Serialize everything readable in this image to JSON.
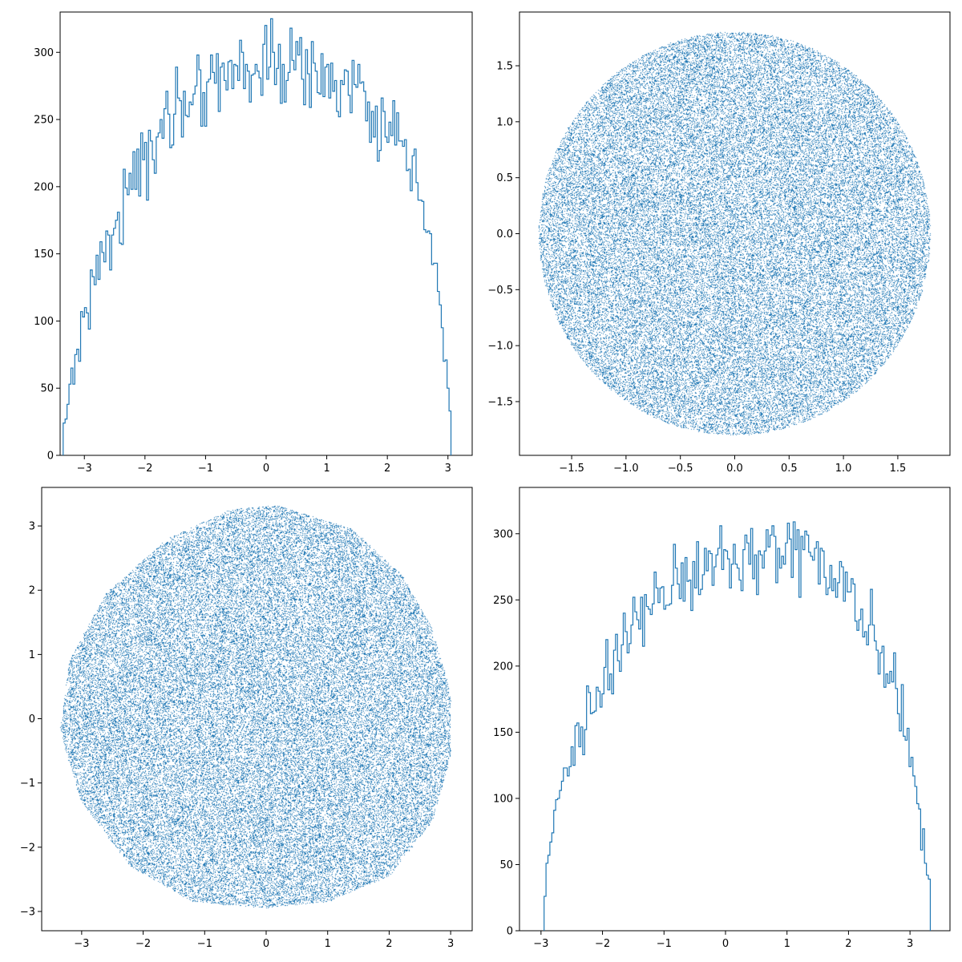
{
  "colors": {
    "series": "#1f77b4",
    "axes": "#000000",
    "background": "#ffffff"
  },
  "chart_data": [
    {
      "position": "top-left",
      "type": "histogram",
      "histtype": "step",
      "title": "",
      "xlabel": "",
      "ylabel": "",
      "xlim": [
        -3.4,
        3.4
      ],
      "ylim": [
        0,
        330
      ],
      "xticks": [
        -3,
        -2,
        -1,
        0,
        1,
        2,
        3
      ],
      "yticks": [
        0,
        50,
        100,
        150,
        200,
        250,
        300
      ],
      "bin_range": [
        -3.35,
        3.05
      ],
      "bin_count": 200,
      "keypoint_counts": [
        [
          -3.33,
          18
        ],
        [
          -3.25,
          50
        ],
        [
          -3.1,
          82
        ],
        [
          -3.0,
          100
        ],
        [
          -2.85,
          132
        ],
        [
          -2.7,
          150
        ],
        [
          -2.5,
          170
        ],
        [
          -2.3,
          195
        ],
        [
          -2.1,
          212
        ],
        [
          -1.9,
          225
        ],
        [
          -1.7,
          245
        ],
        [
          -1.5,
          258
        ],
        [
          -1.3,
          268
        ],
        [
          -1.1,
          276
        ],
        [
          -0.9,
          282
        ],
        [
          -0.7,
          285
        ],
        [
          -0.5,
          288
        ],
        [
          -0.3,
          289
        ],
        [
          -0.1,
          290
        ],
        [
          0.1,
          290
        ],
        [
          0.3,
          289
        ],
        [
          0.5,
          288
        ],
        [
          0.7,
          286
        ],
        [
          0.9,
          283
        ],
        [
          1.1,
          279
        ],
        [
          1.3,
          274
        ],
        [
          1.5,
          266
        ],
        [
          1.7,
          258
        ],
        [
          1.9,
          248
        ],
        [
          2.1,
          235
        ],
        [
          2.3,
          218
        ],
        [
          2.5,
          195
        ],
        [
          2.65,
          170
        ],
        [
          2.8,
          135
        ],
        [
          2.9,
          95
        ],
        [
          3.0,
          55
        ],
        [
          3.05,
          30
        ]
      ]
    },
    {
      "position": "top-right",
      "type": "scatter",
      "shape": "disk",
      "point_count": 60000,
      "center": [
        0,
        0
      ],
      "radius": 1.8,
      "title": "",
      "xlabel": "",
      "ylabel": "",
      "xlim": [
        -1.98,
        1.98
      ],
      "ylim": [
        -1.98,
        1.98
      ],
      "xticks": [
        "-1.5",
        "-1.0",
        "-0.5",
        "0.0",
        "0.5",
        "1.0",
        "1.5"
      ],
      "yticks": [
        "-1.5",
        "-1.0",
        "-0.5",
        "0.0",
        "0.5",
        "1.0",
        "1.5"
      ]
    },
    {
      "position": "bottom-left",
      "type": "scatter",
      "shape": "rounded blob",
      "point_count": 60000,
      "title": "",
      "xlabel": "",
      "ylabel": "",
      "xlim": [
        -3.65,
        3.35
      ],
      "ylim": [
        -3.3,
        3.6
      ],
      "xticks": [
        -3,
        -2,
        -1,
        0,
        1,
        2,
        3
      ],
      "yticks": [
        -3,
        -2,
        -1,
        0,
        1,
        2,
        3
      ],
      "boundary": [
        [
          0.2,
          3.32
        ],
        [
          1.4,
          2.95
        ],
        [
          2.2,
          2.25
        ],
        [
          2.7,
          1.4
        ],
        [
          3.0,
          0.4
        ],
        [
          3.0,
          -0.6
        ],
        [
          2.7,
          -1.6
        ],
        [
          2.0,
          -2.45
        ],
        [
          1.0,
          -2.85
        ],
        [
          0.0,
          -2.95
        ],
        [
          -1.2,
          -2.85
        ],
        [
          -2.2,
          -2.3
        ],
        [
          -3.0,
          -1.3
        ],
        [
          -3.35,
          -0.2
        ],
        [
          -3.2,
          0.9
        ],
        [
          -2.6,
          1.95
        ],
        [
          -1.6,
          2.8
        ],
        [
          -0.6,
          3.25
        ]
      ]
    },
    {
      "position": "bottom-right",
      "type": "histogram",
      "histtype": "step",
      "title": "",
      "xlabel": "",
      "ylabel": "",
      "xlim": [
        -3.35,
        3.65
      ],
      "ylim": [
        0,
        335
      ],
      "xticks": [
        -3,
        -2,
        -1,
        0,
        1,
        2,
        3
      ],
      "yticks": [
        0,
        50,
        100,
        150,
        200,
        250,
        300
      ],
      "bin_range": [
        -2.95,
        3.33
      ],
      "bin_count": 200,
      "keypoint_counts": [
        [
          -2.95,
          18
        ],
        [
          -2.85,
          60
        ],
        [
          -2.75,
          95
        ],
        [
          -2.6,
          120
        ],
        [
          -2.45,
          140
        ],
        [
          -2.3,
          158
        ],
        [
          -2.15,
          172
        ],
        [
          -2.0,
          190
        ],
        [
          -1.8,
          210
        ],
        [
          -1.6,
          222
        ],
        [
          -1.4,
          234
        ],
        [
          -1.2,
          245
        ],
        [
          -1.0,
          255
        ],
        [
          -0.8,
          262
        ],
        [
          -0.6,
          268
        ],
        [
          -0.4,
          275
        ],
        [
          -0.2,
          280
        ],
        [
          0.0,
          284
        ],
        [
          0.2,
          286
        ],
        [
          0.4,
          287
        ],
        [
          0.6,
          287
        ],
        [
          0.8,
          286
        ],
        [
          1.0,
          284
        ],
        [
          1.2,
          280
        ],
        [
          1.4,
          276
        ],
        [
          1.6,
          270
        ],
        [
          1.8,
          262
        ],
        [
          2.0,
          252
        ],
        [
          2.2,
          240
        ],
        [
          2.4,
          225
        ],
        [
          2.6,
          205
        ],
        [
          2.8,
          178
        ],
        [
          2.95,
          150
        ],
        [
          3.05,
          120
        ],
        [
          3.15,
          90
        ],
        [
          3.25,
          55
        ],
        [
          3.33,
          30
        ]
      ]
    }
  ]
}
